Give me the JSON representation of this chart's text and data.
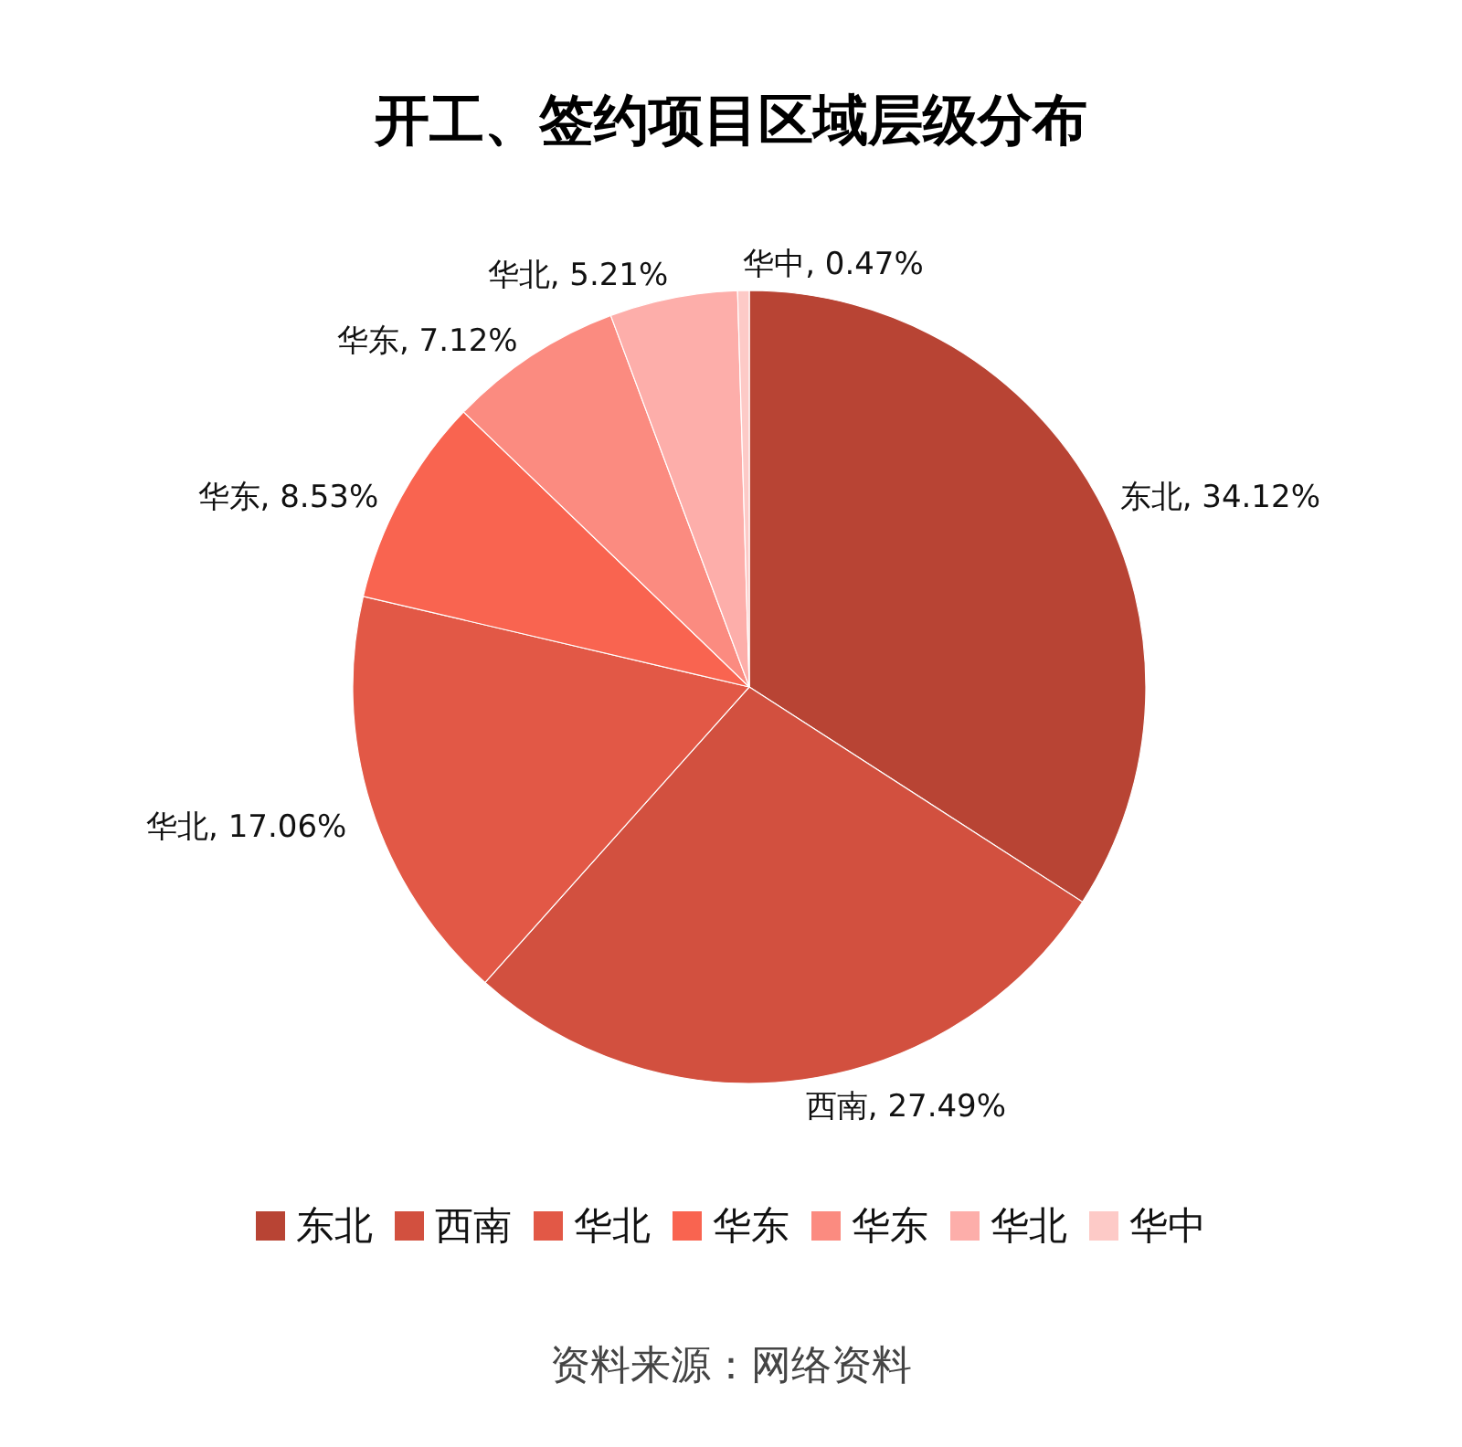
{
  "chart_data": {
    "type": "pie",
    "title": "开工、签约项目区域层级分布",
    "categories": [
      "东北",
      "西南",
      "华北",
      "华东",
      "华东",
      "华北",
      "华中"
    ],
    "values": [
      34.12,
      27.49,
      17.06,
      8.53,
      7.12,
      5.21,
      0.47
    ],
    "colors": [
      "#b84434",
      "#d2503f",
      "#e25846",
      "#f96450",
      "#fb8b80",
      "#fdaeaa",
      "#fdcac7"
    ],
    "value_labels": [
      "东北, 34.12%",
      "西南, 27.49%",
      "华北, 17.06%",
      "华东, 8.53%",
      "华东, 7.12%",
      "华北, 5.21%",
      "华中, 0.47%"
    ],
    "legend": "bottom",
    "annotations": [
      "资料来源：网络资料"
    ]
  }
}
